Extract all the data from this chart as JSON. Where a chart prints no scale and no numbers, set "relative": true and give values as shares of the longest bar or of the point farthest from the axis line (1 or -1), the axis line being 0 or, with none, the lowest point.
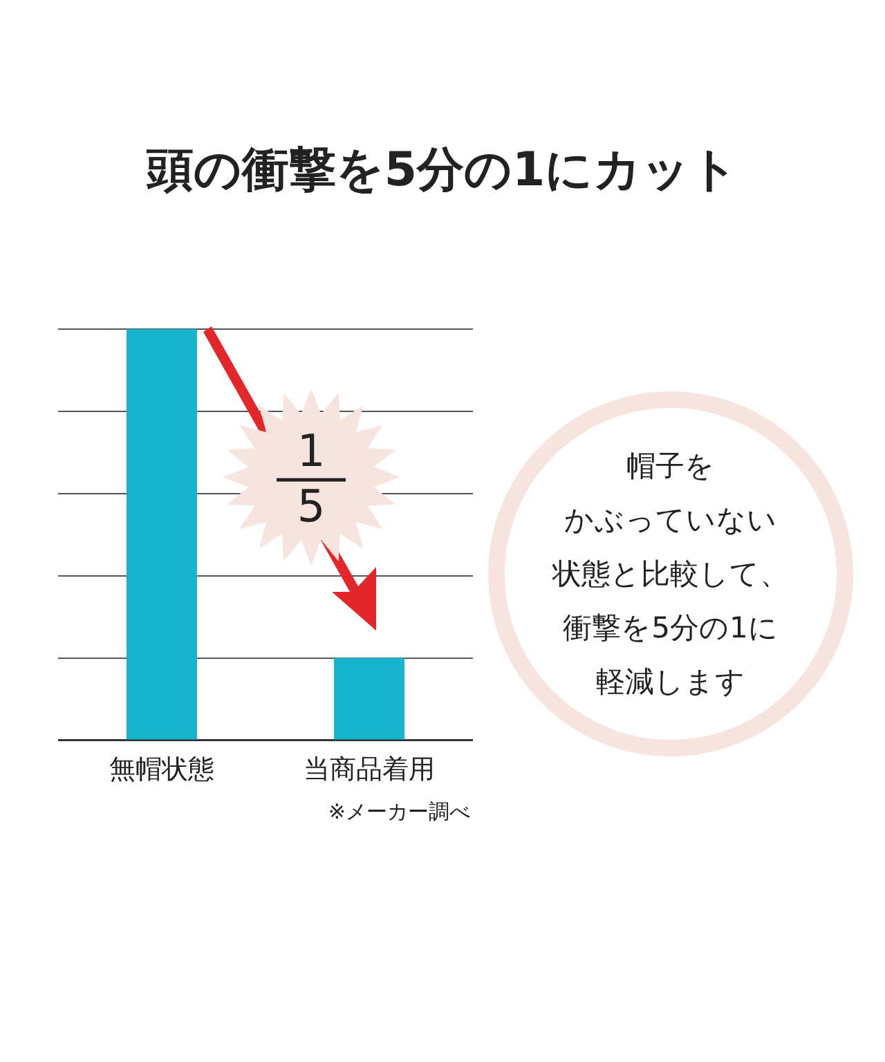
{
  "chart_data": {
    "type": "bar",
    "title": "頭の衝撃を5分の1にカット",
    "categories": [
      "無帽状態",
      "当商品着用"
    ],
    "values": [
      1,
      0.2
    ],
    "color": "#16b4cc",
    "relative": true,
    "grid": "y",
    "annotations": [
      "※メーカー調べ",
      "1",
      "5",
      "帽子を",
      "かぶっていない",
      "状態と比較して、",
      "衝撃を5分の1に",
      "軽減します"
    ]
  }
}
